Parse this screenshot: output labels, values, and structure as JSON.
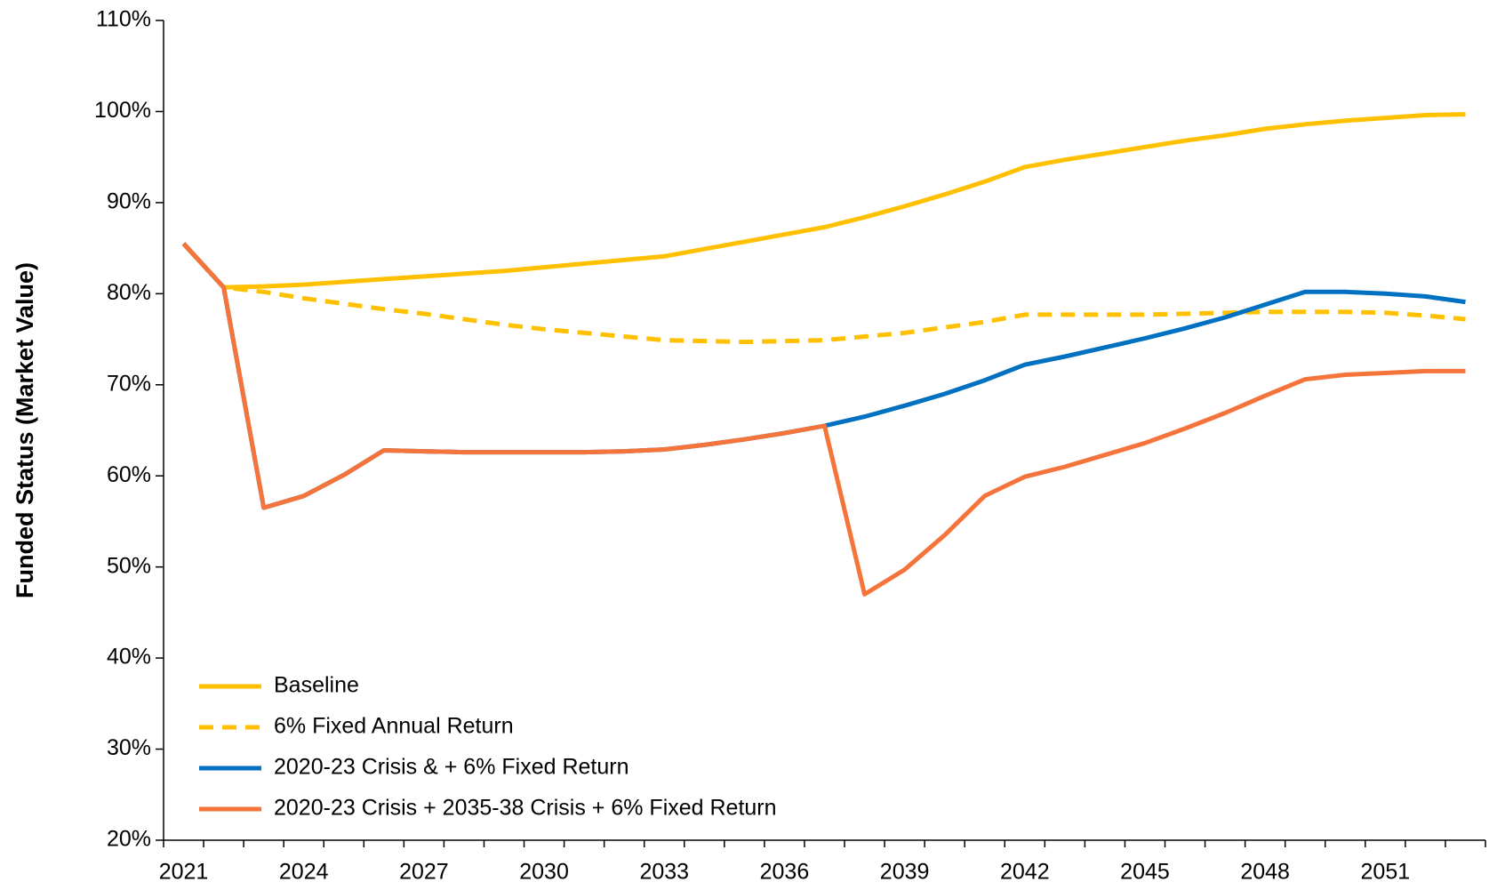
{
  "chart_data": {
    "type": "line",
    "y_label": "Funded Status (Market Value)",
    "categories": [
      "2021",
      null,
      null,
      "2024",
      null,
      null,
      "2027",
      null,
      null,
      "2030",
      null,
      null,
      "2033",
      null,
      null,
      "2036",
      null,
      null,
      "2039",
      null,
      null,
      "2042",
      null,
      null,
      "2045",
      null,
      null,
      "2048",
      null,
      null,
      "2051",
      null,
      null
    ],
    "ylim": [
      20,
      110
    ],
    "yticks": [
      {
        "value": 20,
        "label": "20%"
      },
      {
        "value": 30,
        "label": "30%"
      },
      {
        "value": 40,
        "label": "40%"
      },
      {
        "value": 50,
        "label": "50%"
      },
      {
        "value": 60,
        "label": "60%"
      },
      {
        "value": 70,
        "label": "70%"
      },
      {
        "value": 80,
        "label": "80%"
      },
      {
        "value": 90,
        "label": "90%"
      },
      {
        "value": 100,
        "label": "100%"
      },
      {
        "value": 110,
        "label": "110%"
      }
    ],
    "legend": "lower left",
    "series": [
      {
        "name": "Baseline",
        "color": "#FFC000",
        "dashed": false,
        "values": [
          85.5,
          80.7,
          80.8,
          81.0,
          81.3,
          81.6,
          81.9,
          82.2,
          82.5,
          82.9,
          83.3,
          83.7,
          84.1,
          84.9,
          85.7,
          86.5,
          87.3,
          88.4,
          89.6,
          90.9,
          92.3,
          93.9,
          94.7,
          95.4,
          96.1,
          96.8,
          97.4,
          98.1,
          98.6,
          99.0,
          99.3,
          99.6,
          99.7
        ]
      },
      {
        "name": "6% Fixed Annual Return",
        "color": "#FFC000",
        "dashed": true,
        "values": [
          85.5,
          80.7,
          80.2,
          79.5,
          78.9,
          78.3,
          77.8,
          77.2,
          76.6,
          76.1,
          75.7,
          75.3,
          74.9,
          74.8,
          74.7,
          74.8,
          74.9,
          75.3,
          75.7,
          76.3,
          76.9,
          77.7,
          77.7,
          77.7,
          77.7,
          77.8,
          77.9,
          78.0,
          78.0,
          78.0,
          77.9,
          77.6,
          77.2
        ]
      },
      {
        "name": "2020-23 Crisis &  + 6% Fixed  Return",
        "color": "#0070C0",
        "dashed": false,
        "values": [
          85.5,
          80.7,
          56.5,
          57.8,
          60.1,
          62.8,
          62.7,
          62.6,
          62.6,
          62.6,
          62.6,
          62.7,
          62.9,
          63.4,
          64.0,
          64.7,
          65.5,
          66.5,
          67.7,
          69.0,
          70.5,
          72.2,
          73.1,
          74.1,
          75.1,
          76.2,
          77.4,
          78.8,
          80.2,
          80.2,
          80.0,
          79.7,
          79.1
        ]
      },
      {
        "name": "2020-23 Crisis + 2035-38 Crisis  + 6% Fixed  Return",
        "color": "#F4743B",
        "dashed": false,
        "values": [
          85.5,
          80.7,
          56.5,
          57.8,
          60.1,
          62.8,
          62.7,
          62.6,
          62.6,
          62.6,
          62.6,
          62.7,
          62.9,
          63.4,
          64.0,
          64.7,
          65.5,
          47.0,
          49.7,
          53.5,
          57.8,
          59.9,
          61.0,
          62.3,
          63.6,
          65.2,
          66.9,
          68.8,
          70.6,
          71.1,
          71.3,
          71.5,
          71.5
        ]
      }
    ]
  }
}
